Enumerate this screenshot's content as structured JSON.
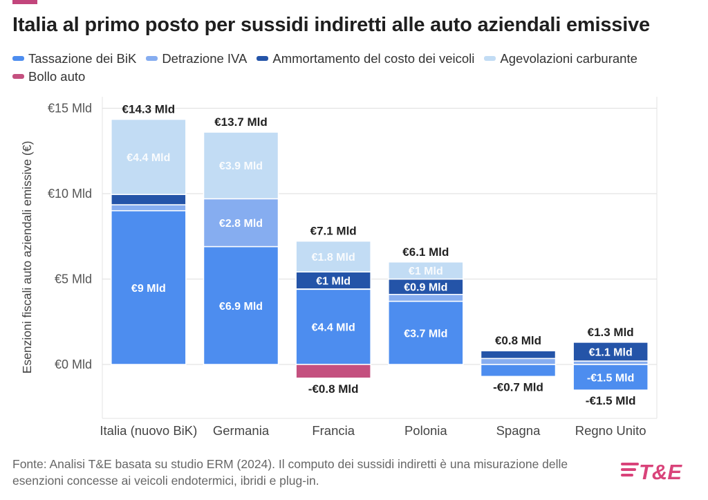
{
  "title": "Italia al primo posto per sussidi indiretti alle auto aziendali emissive",
  "footer": "Fonte: Analisi T&E basata su studio ERM (2024). Il computo dei sussidi indiretti è una misurazione delle esenzioni concesse ai veicoli endotermici, ibridi e plug-in.",
  "logo_text": "T&E",
  "colors": {
    "tassazione_bik": "#4d8def",
    "detrazione_iva": "#86adf0",
    "ammortamento": "#2454a8",
    "agevolazioni_carburante": "#c2dcf4",
    "bollo_auto": "#c4507f",
    "logo": "#d9437a",
    "topbar": "#c2457c"
  },
  "chart_data": {
    "type": "bar",
    "stacked": true,
    "ylabel": "Esenzioni fiscali auto aziendali emissive (€)",
    "ylim": [
      -2.5,
      15
    ],
    "yticks": [
      0,
      5,
      10,
      15
    ],
    "ytick_labels": [
      "€0 Mld",
      "€5 Mld",
      "€10 Mld",
      "€15 Mld"
    ],
    "grid": true,
    "legend_position": "top-left",
    "categories": [
      "Italia (nuovo BiK)",
      "Germania",
      "Francia",
      "Polonia",
      "Spagna",
      "Regno Unito"
    ],
    "series": [
      {
        "name": "Tassazione dei BiK",
        "color": "#4d8def",
        "values": [
          9,
          6.9,
          4.4,
          3.7,
          -0.7,
          -1.5
        ]
      },
      {
        "name": "Detrazione IVA",
        "color": "#86adf0",
        "values": [
          0.35,
          2.8,
          0.02,
          0.4,
          0.35,
          0.2
        ]
      },
      {
        "name": "Ammortamento del costo dei veicoli",
        "color": "#2454a8",
        "values": [
          0.6,
          0.0,
          1,
          0.9,
          0.45,
          1.1
        ]
      },
      {
        "name": "Agevolazioni carburante",
        "color": "#c2dcf4",
        "values": [
          4.4,
          3.9,
          1.8,
          1,
          0.0,
          0.0
        ]
      },
      {
        "name": "Bollo auto",
        "color": "#c4507f",
        "values": [
          0,
          0,
          -0.8,
          0,
          0,
          0
        ]
      }
    ],
    "segment_labels": [
      {
        "category": 0,
        "series": 0,
        "text": "€9 Mld",
        "value": 9
      },
      {
        "category": 0,
        "series": 3,
        "text": "€4.4 Mld",
        "value": 4.4
      },
      {
        "category": 1,
        "series": 0,
        "text": "€6.9 Mld",
        "value": 6.9
      },
      {
        "category": 1,
        "series": 1,
        "text": "€2.8 Mld",
        "value": 2.8
      },
      {
        "category": 1,
        "series": 3,
        "text": "€3.9 Mld",
        "value": 3.9
      },
      {
        "category": 2,
        "series": 0,
        "text": "€4.4 Mld",
        "value": 4.4
      },
      {
        "category": 2,
        "series": 2,
        "text": "€1 Mld",
        "value": 1
      },
      {
        "category": 2,
        "series": 3,
        "text": "€1.8 Mld",
        "value": 1.8
      },
      {
        "category": 3,
        "series": 0,
        "text": "€3.7 Mld",
        "value": 3.7
      },
      {
        "category": 3,
        "series": 2,
        "text": "€0.9 Mld",
        "value": 0.9
      },
      {
        "category": 3,
        "series": 3,
        "text": "€1 Mld",
        "value": 1
      },
      {
        "category": 5,
        "series": 0,
        "text": "-€1.5 Mld",
        "value": -1.5
      },
      {
        "category": 5,
        "series": 2,
        "text": "€1.1 Mld",
        "value": 1.1
      }
    ],
    "totals_positive": [
      "€14.3 Mld",
      "€13.7 Mld",
      "€7.1 Mld",
      "€6.1 Mld",
      "€0.8 Mld",
      "€1.3 Mld"
    ],
    "totals_negative": [
      "",
      "",
      "-€0.8 Mld",
      "",
      "-€0.7 Mld",
      "-€1.5 Mld"
    ]
  }
}
